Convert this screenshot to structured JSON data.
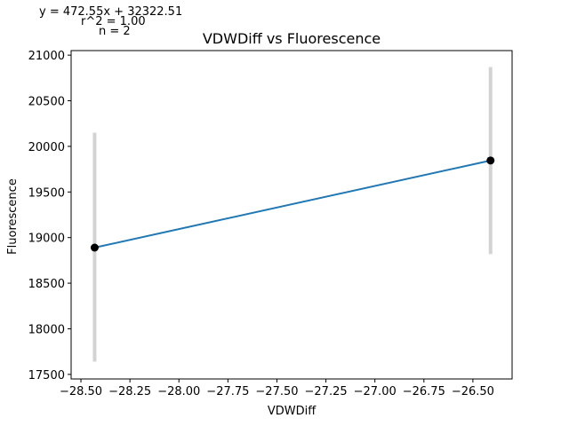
{
  "chart_data": {
    "type": "scatter",
    "title": "VDWDiff vs Fluorescence",
    "xlabel": "VDWDiff",
    "ylabel": "Fluorescence",
    "xlim": [
      -28.55,
      -26.3
    ],
    "ylim": [
      17450,
      21050
    ],
    "xticks": [
      -28.5,
      -28.25,
      -28.0,
      -27.75,
      -27.5,
      -27.25,
      -27.0,
      -26.75,
      -26.5
    ],
    "xtick_labels": [
      "−28.50",
      "−28.25",
      "−28.00",
      "−27.75",
      "−27.50",
      "−27.25",
      "−27.00",
      "−26.75",
      "−26.50"
    ],
    "yticks": [
      17500,
      18000,
      18500,
      19000,
      19500,
      20000,
      20500,
      21000
    ],
    "ytick_labels": [
      "17500",
      "18000",
      "18500",
      "19000",
      "19500",
      "20000",
      "20500",
      "21000"
    ],
    "grid": false,
    "points": [
      {
        "x": -28.43,
        "y": 18890,
        "err_low": 17640,
        "err_high": 20150
      },
      {
        "x": -26.41,
        "y": 19845,
        "err_low": 18820,
        "err_high": 20870
      }
    ],
    "fit_line": {
      "x": [
        -28.43,
        -26.41
      ],
      "y": [
        18890,
        19845
      ]
    },
    "annotations": [
      "y = 472.55x + 32322.51",
      "r^2 = 1.00",
      "n = 2"
    ],
    "colors": {
      "line": "#1f77b4",
      "marker": "#000000",
      "errorbar": "#d3d3d3",
      "axes": "#000000"
    }
  }
}
